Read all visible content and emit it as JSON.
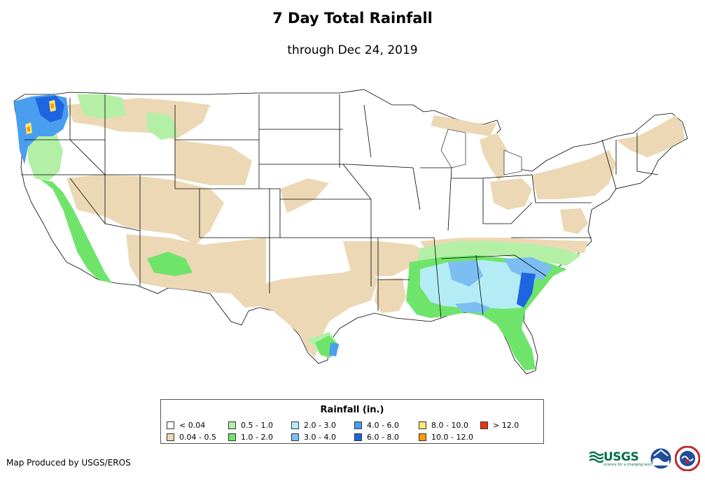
{
  "title": "7 Day Total Rainfall",
  "subtitle": "through Dec 24, 2019",
  "legend": {
    "title": "Rainfall (in.)",
    "items": [
      {
        "label": "< 0.04",
        "color": "#ffffff"
      },
      {
        "label": "0.5 - 1.0",
        "color": "#b3f0a6"
      },
      {
        "label": "2.0 - 3.0",
        "color": "#b4ecf5"
      },
      {
        "label": "4.0 - 6.0",
        "color": "#4a9ef0"
      },
      {
        "label": "8.0 - 10.0",
        "color": "#ffe873"
      },
      {
        "label": "> 12.0",
        "color": "#ee3311"
      },
      {
        "label": "0.04 - 0.5",
        "color": "#ecd8b5"
      },
      {
        "label": "1.0 - 2.0",
        "color": "#6fe46b"
      },
      {
        "label": "3.0 - 4.0",
        "color": "#7cbef2"
      },
      {
        "label": "6.0 - 8.0",
        "color": "#1f64e0"
      },
      {
        "label": "10.0 - 12.0",
        "color": "#ff9a00"
      }
    ]
  },
  "credit": "Map Produced by USGS/EROS",
  "logos": {
    "usgs": "USGS",
    "usgs_tagline": "science for a changing world",
    "noaa": "noaa-emblem",
    "nws": "nws-emblem"
  },
  "map": {
    "region": "Contiguous United States",
    "state_outline_color": "#000000",
    "background_color": "#ffffff"
  }
}
